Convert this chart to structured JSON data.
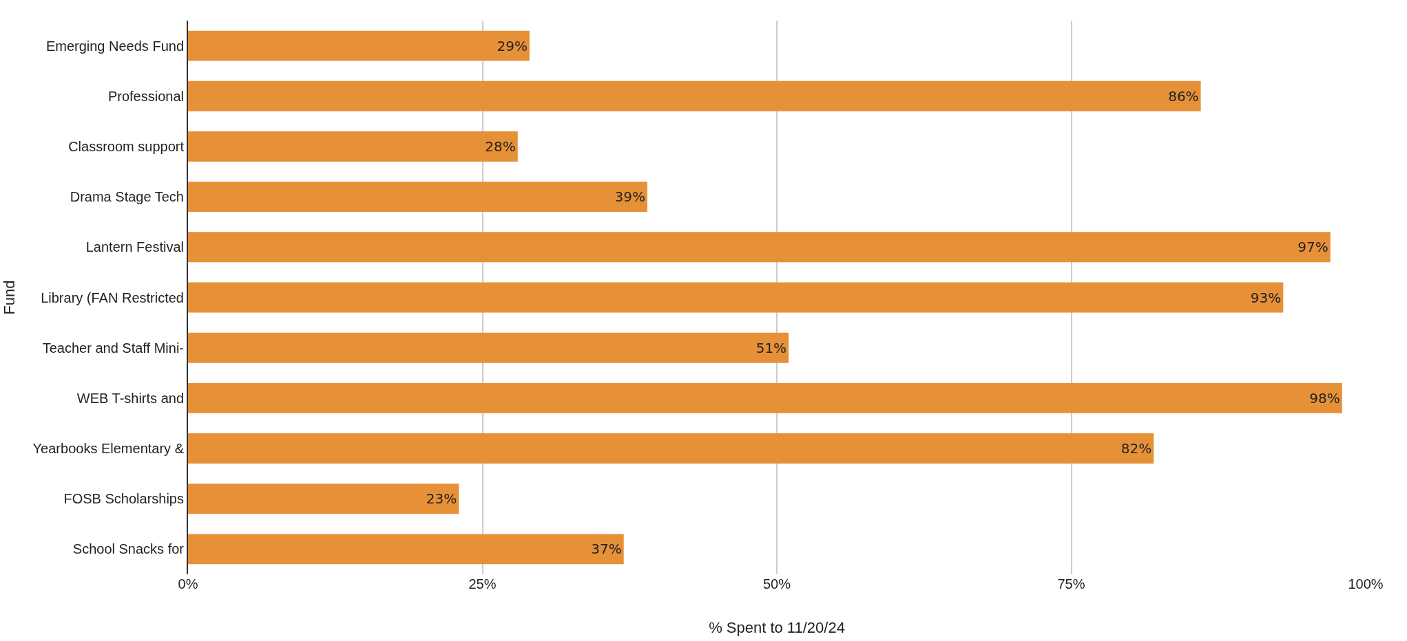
{
  "chart_data": {
    "type": "bar",
    "orientation": "horizontal",
    "xlabel": "% Spent to 11/20/24",
    "ylabel": "Fund",
    "categories": [
      "Emerging Needs Fund",
      "Professional",
      "Classroom support",
      "Drama Stage Tech",
      "Lantern Festival",
      "Library (FAN Restricted",
      "Teacher and Staff Mini-",
      "WEB T-shirts and",
      "Yearbooks Elementary &",
      "FOSB Scholarships",
      "School Snacks for"
    ],
    "values": [
      29,
      86,
      28,
      39,
      97,
      93,
      51,
      98,
      82,
      23,
      37
    ],
    "value_labels": [
      "29%",
      "86%",
      "28%",
      "39%",
      "97%",
      "93%",
      "51%",
      "98%",
      "82%",
      "23%",
      "37%"
    ],
    "color": "#e69138",
    "xlim": [
      0,
      100
    ],
    "xticks": [
      {
        "value": 0,
        "label": "0%"
      },
      {
        "value": 25,
        "label": "25%"
      },
      {
        "value": 50,
        "label": "50%"
      },
      {
        "value": 75,
        "label": "75%"
      },
      {
        "value": 100,
        "label": "100%"
      }
    ],
    "grid": "x",
    "legend": false
  }
}
